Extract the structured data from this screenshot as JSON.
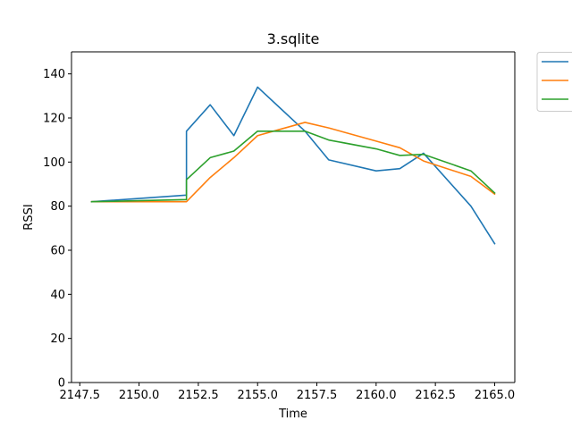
{
  "chart_data": {
    "type": "line",
    "title": "3.sqlite",
    "xlabel": "Time",
    "ylabel": "RSSI",
    "xlim": [
      2147.15,
      2165.85
    ],
    "ylim": [
      0,
      150
    ],
    "xticks": [
      2147.5,
      2150.0,
      2152.5,
      2155.0,
      2157.5,
      2160.0,
      2162.5,
      2165.0
    ],
    "xtick_labels": [
      "2147.5",
      "2150.0",
      "2152.5",
      "2155.0",
      "2157.5",
      "2160.0",
      "2162.5",
      "2165.0"
    ],
    "yticks": [
      0,
      20,
      40,
      60,
      80,
      100,
      120,
      140
    ],
    "ytick_labels": [
      "0",
      "20",
      "40",
      "60",
      "80",
      "100",
      "120",
      "140"
    ],
    "grid": false,
    "legend_location": "outside-upper-right",
    "series": [
      {
        "color": "#1f77b4",
        "points": [
          [
            2148,
            82
          ],
          [
            2152,
            85
          ],
          [
            2152,
            114
          ],
          [
            2153,
            126
          ],
          [
            2154,
            112
          ],
          [
            2155,
            134
          ],
          [
            2156,
            124
          ],
          [
            2157,
            114
          ],
          [
            2158,
            101
          ],
          [
            2160,
            96
          ],
          [
            2161,
            97
          ],
          [
            2162,
            104
          ],
          [
            2164,
            80
          ],
          [
            2165,
            63
          ]
        ]
      },
      {
        "color": "#ff7f0e",
        "points": [
          [
            2148,
            82
          ],
          [
            2152,
            82
          ],
          [
            2153,
            93
          ],
          [
            2154,
            102
          ],
          [
            2155,
            112
          ],
          [
            2156,
            115
          ],
          [
            2157,
            118
          ],
          [
            2158,
            115.5
          ],
          [
            2160,
            109.5
          ],
          [
            2161,
            106.5
          ],
          [
            2162,
            100.5
          ],
          [
            2164,
            93.5
          ],
          [
            2165,
            85.5
          ]
        ]
      },
      {
        "color": "#2ca02c",
        "points": [
          [
            2148,
            82
          ],
          [
            2152,
            83
          ],
          [
            2152,
            92
          ],
          [
            2153,
            102
          ],
          [
            2154,
            105
          ],
          [
            2155,
            114
          ],
          [
            2156,
            114
          ],
          [
            2157,
            114
          ],
          [
            2158,
            110
          ],
          [
            2160,
            106
          ],
          [
            2161,
            103
          ],
          [
            2162,
            103.5
          ],
          [
            2164,
            96
          ],
          [
            2165,
            86
          ]
        ]
      }
    ]
  }
}
